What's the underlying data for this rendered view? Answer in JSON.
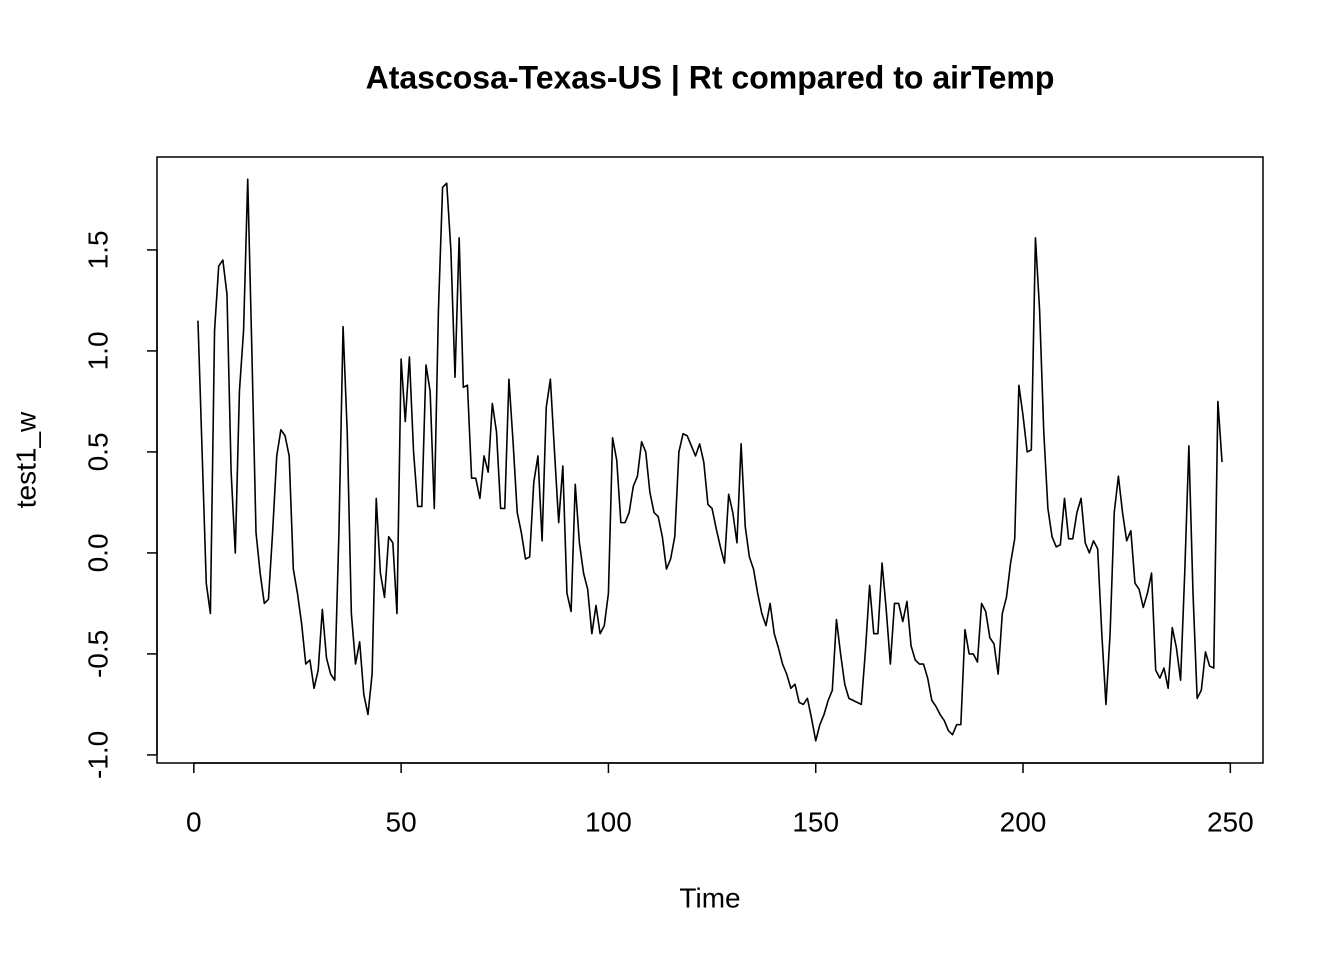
{
  "chart_data": {
    "type": "line",
    "title": "Atascosa-Texas-US | Rt compared to airTemp",
    "x_label": "Time",
    "y_label": "test1_w",
    "color": "#000000",
    "xlim": [
      -8.88,
      257.88
    ],
    "ylim": [
      -1.04,
      1.96
    ],
    "xticks": [
      0,
      50,
      100,
      150,
      200,
      250
    ],
    "yticks": [
      {
        "value": -1,
        "label": "-1.0"
      },
      -0.5,
      {
        "value": 0,
        "label": "0.0"
      },
      0.5,
      {
        "value": 1,
        "label": "1.0"
      },
      1.5
    ],
    "x": [
      1,
      2,
      3,
      4,
      5,
      6,
      7,
      8,
      9,
      10,
      11,
      12,
      13,
      14,
      15,
      16,
      17,
      18,
      19,
      20,
      21,
      22,
      23,
      24,
      25,
      26,
      27,
      28,
      29,
      30,
      31,
      32,
      33,
      34,
      35,
      36,
      37,
      38,
      39,
      40,
      41,
      42,
      43,
      44,
      45,
      46,
      47,
      48,
      49,
      50,
      51,
      52,
      53,
      54,
      55,
      56,
      57,
      58,
      59,
      60,
      61,
      62,
      63,
      64,
      65,
      66,
      67,
      68,
      69,
      70,
      71,
      72,
      73,
      74,
      75,
      76,
      77,
      78,
      79,
      80,
      81,
      82,
      83,
      84,
      85,
      86,
      87,
      88,
      89,
      90,
      91,
      92,
      93,
      94,
      95,
      96,
      97,
      98,
      99,
      100,
      101,
      102,
      103,
      104,
      105,
      106,
      107,
      108,
      109,
      110,
      111,
      112,
      113,
      114,
      115,
      116,
      117,
      118,
      119,
      120,
      121,
      122,
      123,
      124,
      125,
      126,
      127,
      128,
      129,
      130,
      131,
      132,
      133,
      134,
      135,
      136,
      137,
      138,
      139,
      140,
      141,
      142,
      143,
      144,
      145,
      146,
      147,
      148,
      149,
      150,
      151,
      152,
      153,
      154,
      155,
      156,
      157,
      158,
      159,
      160,
      161,
      162,
      163,
      164,
      165,
      166,
      167,
      168,
      169,
      170,
      171,
      172,
      173,
      174,
      175,
      176,
      177,
      178,
      179,
      180,
      181,
      182,
      183,
      184,
      185,
      186,
      187,
      188,
      189,
      190,
      191,
      192,
      193,
      194,
      195,
      196,
      197,
      198,
      199,
      200,
      201,
      202,
      203,
      204,
      205,
      206,
      207,
      208,
      209,
      210,
      211,
      212,
      213,
      214,
      215,
      216,
      217,
      218,
      219,
      220,
      221,
      222,
      223,
      224,
      225,
      226,
      227,
      228,
      229,
      230,
      231,
      232,
      233,
      234,
      235,
      236,
      237,
      238,
      239,
      240,
      241,
      242,
      243,
      244,
      245,
      246,
      247,
      248
    ],
    "values": [
      1.15,
      0.5,
      -0.15,
      -0.3,
      1.1,
      1.42,
      1.45,
      1.28,
      0.4,
      0.0,
      0.8,
      1.1,
      1.85,
      1.0,
      0.1,
      -0.1,
      -0.25,
      -0.23,
      0.1,
      0.48,
      0.61,
      0.58,
      0.48,
      -0.08,
      -0.2,
      -0.35,
      -0.55,
      -0.53,
      -0.67,
      -0.58,
      -0.28,
      -0.52,
      -0.6,
      -0.63,
      0.1,
      1.12,
      0.6,
      -0.3,
      -0.55,
      -0.44,
      -0.7,
      -0.8,
      -0.6,
      0.27,
      -0.1,
      -0.22,
      0.08,
      0.05,
      -0.3,
      0.96,
      0.65,
      0.97,
      0.5,
      0.23,
      0.23,
      0.93,
      0.8,
      0.22,
      1.2,
      1.81,
      1.83,
      1.5,
      0.87,
      1.56,
      0.82,
      0.83,
      0.37,
      0.37,
      0.27,
      0.48,
      0.4,
      0.74,
      0.6,
      0.22,
      0.22,
      0.86,
      0.55,
      0.2,
      0.1,
      -0.03,
      -0.02,
      0.35,
      0.48,
      0.06,
      0.72,
      0.86,
      0.5,
      0.15,
      0.43,
      -0.2,
      -0.29,
      0.34,
      0.05,
      -0.1,
      -0.18,
      -0.4,
      -0.26,
      -0.4,
      -0.36,
      -0.2,
      0.57,
      0.46,
      0.15,
      0.15,
      0.2,
      0.33,
      0.38,
      0.55,
      0.5,
      0.3,
      0.2,
      0.18,
      0.08,
      -0.08,
      -0.03,
      0.08,
      0.5,
      0.59,
      0.58,
      0.53,
      0.48,
      0.54,
      0.45,
      0.24,
      0.22,
      0.12,
      0.03,
      -0.05,
      0.29,
      0.2,
      0.05,
      0.54,
      0.13,
      -0.02,
      -0.08,
      -0.2,
      -0.3,
      -0.36,
      -0.25,
      -0.4,
      -0.47,
      -0.55,
      -0.6,
      -0.67,
      -0.65,
      -0.74,
      -0.75,
      -0.72,
      -0.82,
      -0.93,
      -0.85,
      -0.8,
      -0.73,
      -0.68,
      -0.33,
      -0.5,
      -0.65,
      -0.72,
      -0.73,
      -0.74,
      -0.75,
      -0.48,
      -0.16,
      -0.4,
      -0.4,
      -0.05,
      -0.28,
      -0.55,
      -0.25,
      -0.25,
      -0.34,
      -0.24,
      -0.46,
      -0.53,
      -0.55,
      -0.55,
      -0.62,
      -0.73,
      -0.76,
      -0.8,
      -0.83,
      -0.88,
      -0.9,
      -0.85,
      -0.85,
      -0.38,
      -0.5,
      -0.5,
      -0.54,
      -0.25,
      -0.29,
      -0.42,
      -0.45,
      -0.6,
      -0.3,
      -0.22,
      -0.05,
      0.07,
      0.83,
      0.68,
      0.5,
      0.51,
      1.56,
      1.2,
      0.6,
      0.22,
      0.08,
      0.03,
      0.04,
      0.27,
      0.07,
      0.07,
      0.2,
      0.27,
      0.05,
      0.0,
      0.06,
      0.02,
      -0.4,
      -0.75,
      -0.4,
      0.2,
      0.38,
      0.2,
      0.06,
      0.11,
      -0.15,
      -0.18,
      -0.27,
      -0.2,
      -0.1,
      -0.58,
      -0.62,
      -0.57,
      -0.67,
      -0.37,
      -0.47,
      -0.63,
      -0.1,
      0.53,
      -0.2,
      -0.72,
      -0.68,
      -0.49,
      -0.56,
      -0.57,
      0.75,
      0.45
    ]
  }
}
